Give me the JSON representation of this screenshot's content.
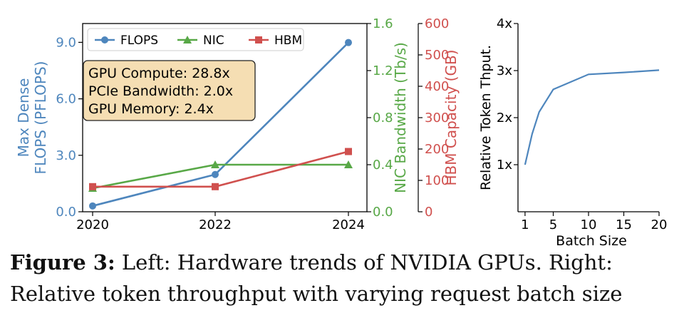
{
  "chart_data": [
    {
      "type": "line",
      "x": [
        "2020",
        "2022",
        "2024"
      ],
      "series": [
        {
          "name": "FLOPS",
          "axis": "left",
          "color": "#4e86bd",
          "marker": "circle",
          "values": [
            0.31,
            1.98,
            8.99
          ]
        },
        {
          "name": "NIC",
          "axis": "right1",
          "color": "#58a847",
          "marker": "triangle",
          "values": [
            0.2,
            0.4,
            0.4
          ]
        },
        {
          "name": "HBM",
          "axis": "right2",
          "color": "#d0504e",
          "marker": "square",
          "values": [
            80,
            80,
            192
          ]
        }
      ],
      "axes": {
        "left": {
          "label_lines": [
            "Max Dense",
            "FLOPS (PFLOPS)"
          ],
          "range": [
            0,
            10
          ],
          "ticks": [
            "0.0",
            "3.0",
            "6.0",
            "9.0"
          ],
          "tick_values": [
            0,
            3,
            6,
            9
          ],
          "color": "#4e86bd"
        },
        "right1": {
          "label": "NIC Bandwidth (Tb/s)",
          "range": [
            0,
            1.6
          ],
          "ticks": [
            "0.0",
            "0.4",
            "0.8",
            "1.2",
            "1.6"
          ],
          "tick_values": [
            0,
            0.4,
            0.8,
            1.2,
            1.6
          ],
          "color": "#58a847"
        },
        "right2": {
          "label": "HBM Capacity (GB)",
          "range": [
            0,
            600
          ],
          "ticks": [
            "0",
            "100",
            "200",
            "300",
            "400",
            "500",
            "600"
          ],
          "tick_values": [
            0,
            100,
            200,
            300,
            400,
            500,
            600
          ],
          "color": "#d0504e"
        }
      },
      "legend": {
        "placement": "top-left"
      },
      "annotation_lines": [
        "GPU Compute: 28.8x",
        "PCIe Bandwidth: 2.0x",
        "GPU Memory: 2.4x"
      ],
      "grid": false
    },
    {
      "type": "line",
      "x": [
        1,
        2,
        3,
        5,
        10,
        15,
        20
      ],
      "series": [
        {
          "color": "#4e86bd",
          "values": [
            1.0,
            1.65,
            2.12,
            2.6,
            2.92,
            2.96,
            3.01
          ]
        }
      ],
      "xlabel": "Batch Size",
      "ylabel": "Relative Token Thput.",
      "xlim": [
        0,
        20
      ],
      "ylim": [
        0,
        4
      ],
      "xticks": [
        "1",
        "5",
        "10",
        "15",
        "20"
      ],
      "xtick_values": [
        1,
        5,
        10,
        15,
        20
      ],
      "yticks": [
        "1x",
        "2x",
        "3x",
        "4x"
      ],
      "ytick_values": [
        1,
        2,
        3,
        4
      ],
      "grid": false
    }
  ],
  "caption": {
    "label": "Figure 3:",
    "text": " Left: Hardware trends of NVIDIA GPUs. Right: Relative token throughput with varying request batch size"
  }
}
